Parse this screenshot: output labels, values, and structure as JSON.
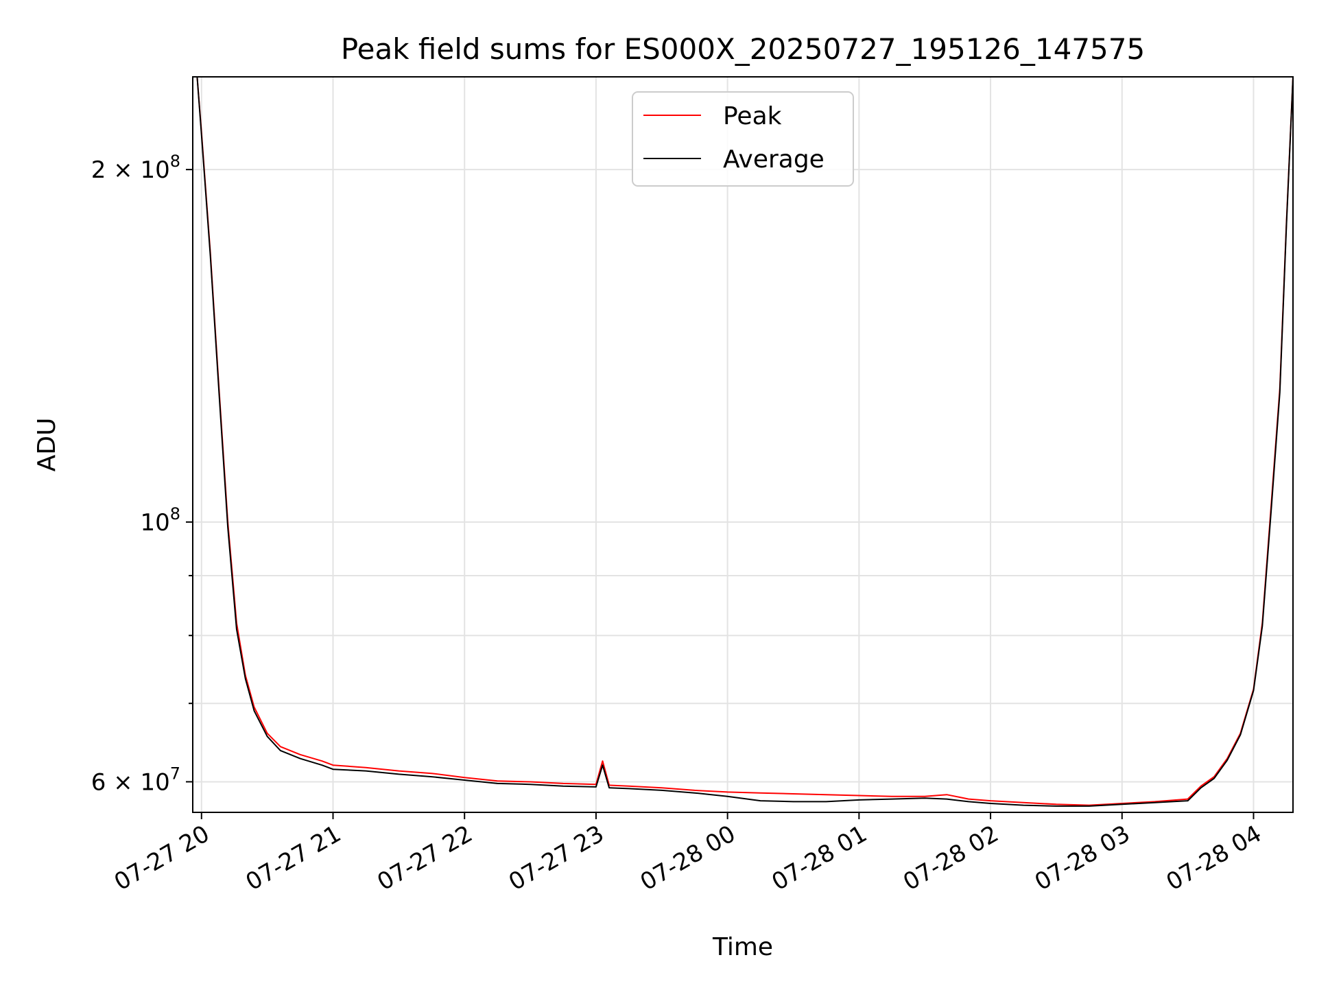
{
  "chart_data": {
    "type": "line",
    "title": "Peak field sums for ES000X_20250727_195126_147575",
    "xlabel": "Time",
    "ylabel": "ADU",
    "y_scale": "log",
    "ylim": [
      56500000,
      240000000
    ],
    "x_range": [
      "2025-07-27 19:56",
      "2025-07-28 04:18"
    ],
    "grid": true,
    "legend": "upper center",
    "x_ticks": [
      "07-27 20",
      "07-27 21",
      "07-27 22",
      "07-27 23",
      "07-28 00",
      "07-28 01",
      "07-28 02",
      "07-28 03",
      "07-28 04"
    ],
    "y_ticks": [
      "2 × 10^8",
      "10^8",
      "6 × 10^7"
    ],
    "colors": {
      "Peak": "#ff0000",
      "Average": "#000000"
    },
    "series": [
      {
        "name": "Peak",
        "x": [
          "2025-07-27 19:56",
          "2025-07-27 19:58",
          "2025-07-27 20:00",
          "2025-07-27 20:04",
          "2025-07-27 20:08",
          "2025-07-27 20:12",
          "2025-07-27 20:16",
          "2025-07-27 20:20",
          "2025-07-27 20:24",
          "2025-07-27 20:30",
          "2025-07-27 20:36",
          "2025-07-27 20:45",
          "2025-07-27 20:55",
          "2025-07-27 21:00",
          "2025-07-27 21:15",
          "2025-07-27 21:30",
          "2025-07-27 21:45",
          "2025-07-27 22:00",
          "2025-07-27 22:15",
          "2025-07-27 22:30",
          "2025-07-27 22:45",
          "2025-07-27 23:00",
          "2025-07-27 23:03",
          "2025-07-27 23:06",
          "2025-07-27 23:15",
          "2025-07-27 23:30",
          "2025-07-27 23:45",
          "2025-07-28 00:00",
          "2025-07-28 00:15",
          "2025-07-28 00:30",
          "2025-07-28 00:45",
          "2025-07-28 01:00",
          "2025-07-28 01:15",
          "2025-07-28 01:30",
          "2025-07-28 01:40",
          "2025-07-28 01:50",
          "2025-07-28 02:00",
          "2025-07-28 02:15",
          "2025-07-28 02:30",
          "2025-07-28 02:45",
          "2025-07-28 03:00",
          "2025-07-28 03:15",
          "2025-07-28 03:30",
          "2025-07-28 03:36",
          "2025-07-28 03:42",
          "2025-07-28 03:48",
          "2025-07-28 03:54",
          "2025-07-28 04:00",
          "2025-07-28 04:04",
          "2025-07-28 04:08",
          "2025-07-28 04:12",
          "2025-07-28 04:15",
          "2025-07-28 04:18"
        ],
        "y": [
          240000000,
          240000000,
          215000000,
          170000000,
          130000000,
          100000000,
          82000000,
          74000000,
          69500000,
          66000000,
          64300000,
          63300000,
          62500000,
          62000000,
          61700000,
          61300000,
          61000000,
          60500000,
          60100000,
          60000000,
          59800000,
          59700000,
          62500000,
          59600000,
          59500000,
          59300000,
          59000000,
          58800000,
          58700000,
          58600000,
          58500000,
          58400000,
          58300000,
          58300000,
          58500000,
          58000000,
          57800000,
          57600000,
          57400000,
          57300000,
          57500000,
          57700000,
          58000000,
          59500000,
          60600000,
          62800000,
          66000000,
          72000000,
          82000000,
          103000000,
          130000000,
          180000000,
          240000000
        ]
      },
      {
        "name": "Average",
        "x": [
          "2025-07-27 19:56",
          "2025-07-27 19:58",
          "2025-07-27 20:00",
          "2025-07-27 20:04",
          "2025-07-27 20:08",
          "2025-07-27 20:12",
          "2025-07-27 20:16",
          "2025-07-27 20:20",
          "2025-07-27 20:24",
          "2025-07-27 20:30",
          "2025-07-27 20:36",
          "2025-07-27 20:45",
          "2025-07-27 20:55",
          "2025-07-27 21:00",
          "2025-07-27 21:15",
          "2025-07-27 21:30",
          "2025-07-27 21:45",
          "2025-07-27 22:00",
          "2025-07-27 22:15",
          "2025-07-27 22:30",
          "2025-07-27 22:45",
          "2025-07-27 23:00",
          "2025-07-27 23:03",
          "2025-07-27 23:06",
          "2025-07-27 23:15",
          "2025-07-27 23:30",
          "2025-07-27 23:45",
          "2025-07-28 00:00",
          "2025-07-28 00:15",
          "2025-07-28 00:30",
          "2025-07-28 00:45",
          "2025-07-28 01:00",
          "2025-07-28 01:15",
          "2025-07-28 01:30",
          "2025-07-28 01:40",
          "2025-07-28 01:50",
          "2025-07-28 02:00",
          "2025-07-28 02:15",
          "2025-07-28 02:30",
          "2025-07-28 02:45",
          "2025-07-28 03:00",
          "2025-07-28 03:15",
          "2025-07-28 03:30",
          "2025-07-28 03:36",
          "2025-07-28 03:42",
          "2025-07-28 03:48",
          "2025-07-28 03:54",
          "2025-07-28 04:00",
          "2025-07-28 04:04",
          "2025-07-28 04:08",
          "2025-07-28 04:12",
          "2025-07-28 04:15",
          "2025-07-28 04:18"
        ],
        "y": [
          240000000,
          240000000,
          214000000,
          169000000,
          129000000,
          99000000,
          81000000,
          73500000,
          69000000,
          65600000,
          63800000,
          62800000,
          62000000,
          61500000,
          61300000,
          60900000,
          60600000,
          60200000,
          59800000,
          59700000,
          59500000,
          59400000,
          62000000,
          59300000,
          59200000,
          59000000,
          58700000,
          58300000,
          57800000,
          57700000,
          57700000,
          57900000,
          58000000,
          58100000,
          58000000,
          57700000,
          57500000,
          57300000,
          57200000,
          57200000,
          57400000,
          57600000,
          57800000,
          59300000,
          60400000,
          62600000,
          65800000,
          71800000,
          81500000,
          102000000,
          129000000,
          179000000,
          240000000
        ]
      }
    ]
  }
}
